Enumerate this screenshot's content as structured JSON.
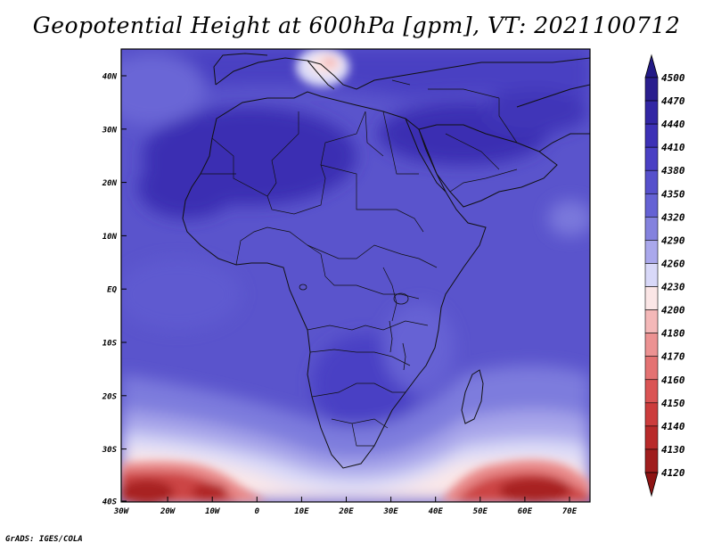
{
  "title": "Geopotential Height at 600hPa [gpm], VT: 2021100712",
  "footer": "GrADS: IGES/COLA",
  "map": {
    "lat_ticks": [
      "40N",
      "30N",
      "20N",
      "10N",
      "EQ",
      "10S",
      "20S",
      "30S",
      "40S"
    ],
    "lon_ticks": [
      "30W",
      "20W",
      "10W",
      "0",
      "10E",
      "20E",
      "30E",
      "40E",
      "50E",
      "60E",
      "70E"
    ],
    "extent": {
      "lon": [
        -30,
        75
      ],
      "lat": [
        -40,
        45
      ]
    }
  },
  "colorbar": {
    "labels": [
      "4500",
      "4470",
      "4440",
      "4410",
      "4380",
      "4350",
      "4320",
      "4290",
      "4260",
      "4230",
      "4200",
      "4180",
      "4170",
      "4160",
      "4150",
      "4140",
      "4130",
      "4120"
    ],
    "colors": [
      "#2a1e8e",
      "#3226a4",
      "#3d31b6",
      "#4a40c4",
      "#5650cc",
      "#6562d4",
      "#8482de",
      "#aaa8ec",
      "#d8d8f8",
      "#fbe6e6",
      "#f4b8b8",
      "#ec9292",
      "#e47272",
      "#da5454",
      "#cc3c3c",
      "#b82a2a",
      "#a01e1e"
    ]
  }
}
